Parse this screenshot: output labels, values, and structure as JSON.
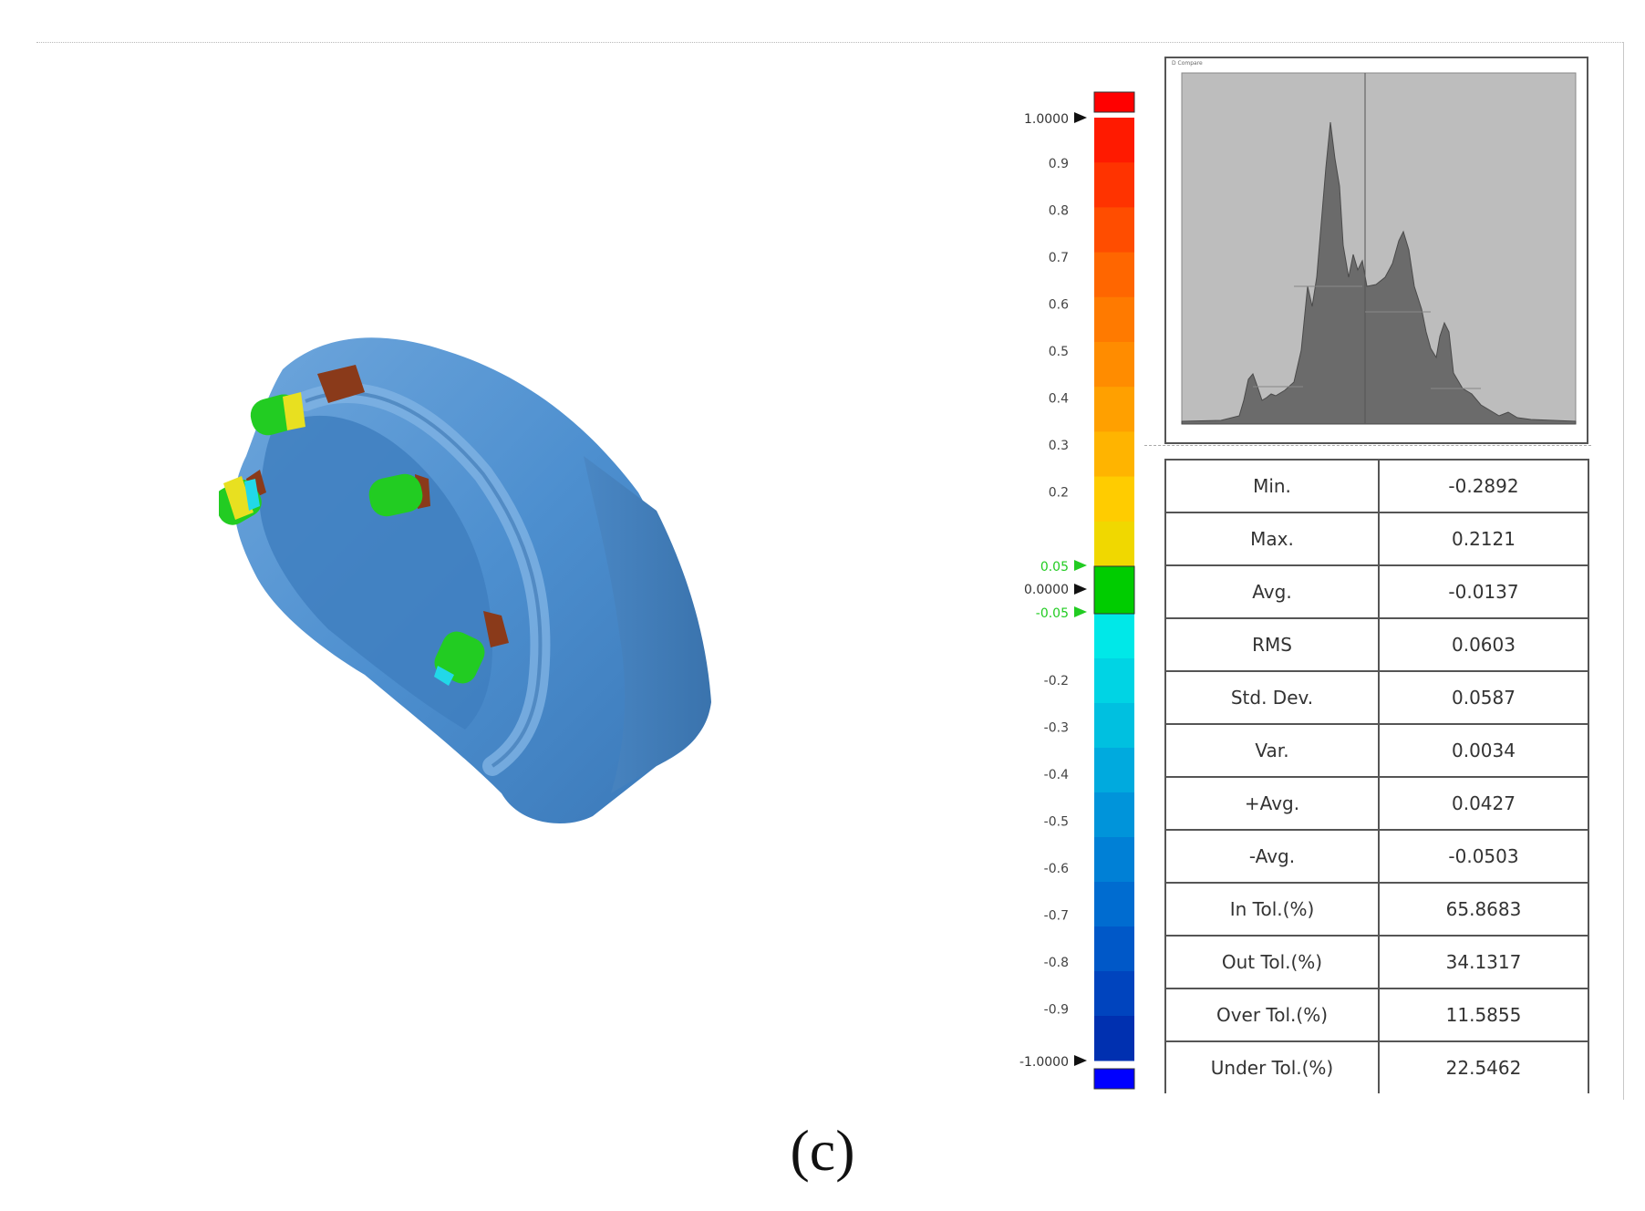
{
  "scale": {
    "top_value": "1.0000",
    "bottom_value": "-1.0000",
    "zero_value": "0.0000",
    "tol_plus": "0.05",
    "tol_minus": "-0.05",
    "pos_ticks": [
      "0.9",
      "0.8",
      "0.7",
      "0.6",
      "0.5",
      "0.4",
      "0.3",
      "0.2"
    ],
    "neg_ticks": [
      "-0.2",
      "-0.3",
      "-0.4",
      "-0.5",
      "-0.6",
      "-0.7",
      "-0.8",
      "-0.9"
    ],
    "colors": {
      "over": "#ff0000",
      "under": "#0000ff",
      "in_tol": "#00cc00",
      "tol_marker": "#22dd22"
    }
  },
  "histogram": {
    "title": "D Compare"
  },
  "stats": [
    {
      "label": "Min.",
      "value": "-0.2892"
    },
    {
      "label": "Max.",
      "value": "0.2121"
    },
    {
      "label": "Avg.",
      "value": "-0.0137"
    },
    {
      "label": "RMS",
      "value": "0.0603"
    },
    {
      "label": "Std. Dev.",
      "value": "0.0587"
    },
    {
      "label": "Var.",
      "value": "0.0034"
    },
    {
      "label": "+Avg.",
      "value": "0.0427"
    },
    {
      "label": "-Avg.",
      "value": "-0.0503"
    },
    {
      "label": "In Tol.(%)",
      "value": "65.8683"
    },
    {
      "label": "Out Tol.(%)",
      "value": "34.1317"
    },
    {
      "label": "Over Tol.(%)",
      "value": "11.5855"
    },
    {
      "label": "Under Tol.(%)",
      "value": "22.5462"
    }
  ],
  "caption": "(c)"
}
